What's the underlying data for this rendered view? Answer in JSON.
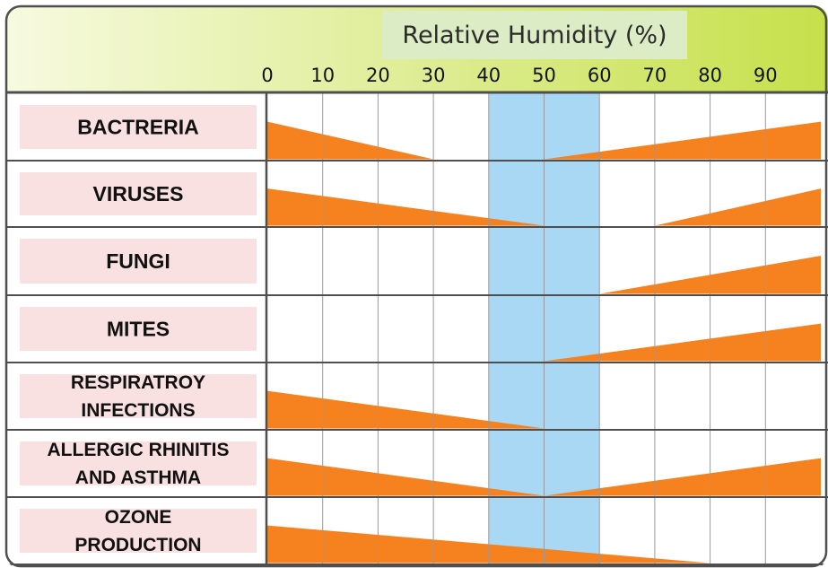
{
  "chart_data": {
    "type": "area",
    "title": "Relative Humidity (%)",
    "x_ticks": [
      0,
      10,
      20,
      30,
      40,
      50,
      60,
      70,
      80,
      90
    ],
    "xlim": [
      0,
      100
    ],
    "optimal_zone": [
      40,
      60
    ],
    "rows": [
      {
        "label": [
          "BACTRERIA"
        ],
        "segments": [
          {
            "x": [
              0,
              30
            ],
            "y": [
              1,
              0
            ]
          },
          {
            "x": [
              50,
              100
            ],
            "y": [
              0,
              1
            ]
          }
        ]
      },
      {
        "label": [
          "VIRUSES"
        ],
        "segments": [
          {
            "x": [
              0,
              50
            ],
            "y": [
              1,
              0
            ]
          },
          {
            "x": [
              70,
              100
            ],
            "y": [
              0,
              1
            ]
          }
        ]
      },
      {
        "label": [
          "FUNGI"
        ],
        "segments": [
          {
            "x": [
              60,
              100
            ],
            "y": [
              0,
              1
            ]
          }
        ]
      },
      {
        "label": [
          "MITES"
        ],
        "segments": [
          {
            "x": [
              50,
              100
            ],
            "y": [
              0,
              1
            ]
          }
        ]
      },
      {
        "label": [
          "RESPIRATROY",
          "INFECTIONS"
        ],
        "segments": [
          {
            "x": [
              0,
              50
            ],
            "y": [
              1,
              0
            ]
          }
        ]
      },
      {
        "label": [
          "ALLERGIC RHINITIS",
          "AND ASTHMA"
        ],
        "segments": [
          {
            "x": [
              0,
              50
            ],
            "y": [
              1,
              0
            ]
          },
          {
            "x": [
              50,
              100
            ],
            "y": [
              0,
              1
            ]
          }
        ]
      },
      {
        "label": [
          "OZONE",
          "PRODUCTION"
        ],
        "segments": [
          {
            "x": [
              0,
              80
            ],
            "y": [
              1,
              0
            ]
          }
        ]
      }
    ],
    "grid": true,
    "colors": {
      "wedge": "#f5821f",
      "optimal_zone": "#a9d8f5",
      "label_bg": "#f9e1e1",
      "header_left": "#f7fae0",
      "header_right": "#c6e04a",
      "title_bg": "#dcecc4",
      "outer_frame": "#4f4f4f",
      "grid_line": "#9a9a9a"
    }
  }
}
